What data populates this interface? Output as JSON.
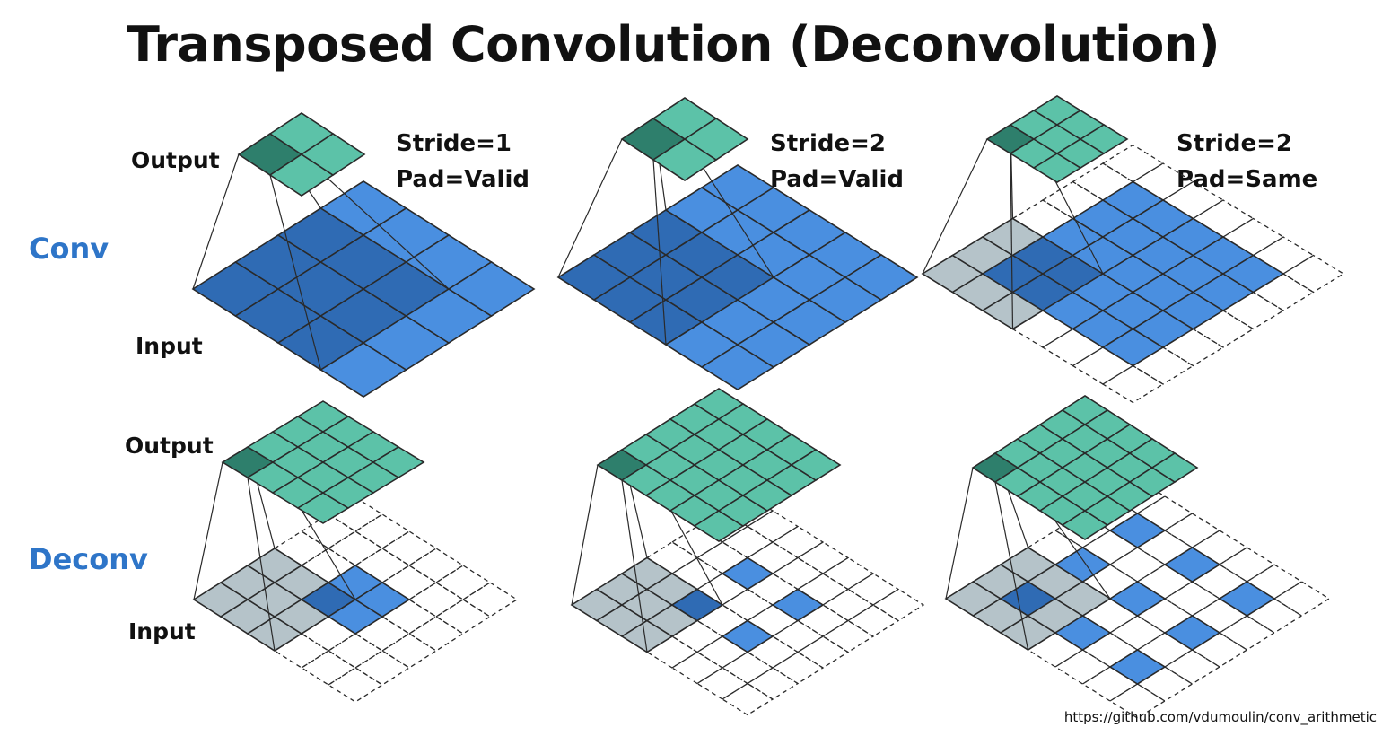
{
  "title": "Transposed Convolution (Deconvolution)",
  "row_labels": {
    "conv": "Conv",
    "deconv": "Deconv"
  },
  "layer_labels": {
    "output": "Output",
    "input": "Input"
  },
  "panels": [
    {
      "id": "conv-s1-valid",
      "stride_label": "Stride=1",
      "pad_label": "Pad=Valid"
    },
    {
      "id": "conv-s2-valid",
      "stride_label": "Stride=2",
      "pad_label": "Pad=Valid"
    },
    {
      "id": "conv-s2-same",
      "stride_label": "Stride=2",
      "pad_label": "Pad=Same"
    }
  ],
  "source": "https://github.com/vdumoulin/conv_arithmetic",
  "colors": {
    "label_blue": "#2e75c8",
    "input_blue": "#4a8fe0",
    "input_blue_dark": "#2f6bb4",
    "output_teal": "#5cc2a8",
    "output_teal_dark": "#2e7f6c",
    "kernel_grey": "#b5c3c9",
    "kernel_overlap": "#2f6bb4",
    "grid_line": "#2a2a2a"
  }
}
